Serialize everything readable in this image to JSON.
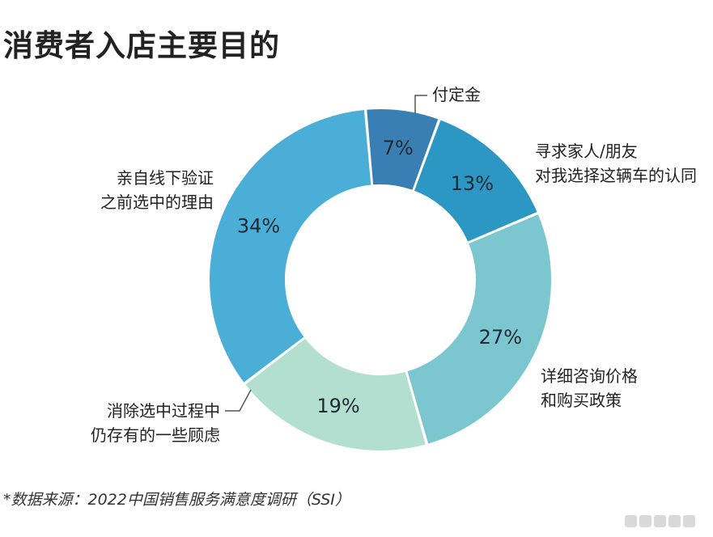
{
  "chart_data": {
    "type": "pie",
    "title": "消费者入店主要目的",
    "slices": [
      {
        "name": "付定金",
        "lines": [
          "付定金"
        ],
        "value": 7,
        "label": "7%",
        "color": "#3a7fb4"
      },
      {
        "name": "寻求家人/朋友对我选择这辆车的认同",
        "lines": [
          "寻求家人/朋友",
          "对我选择这辆车的认同"
        ],
        "value": 13,
        "label": "13%",
        "color": "#2b97c2"
      },
      {
        "name": "详细咨询价格和购买政策",
        "lines": [
          "详细咨询价格",
          "和购买政策"
        ],
        "value": 27,
        "label": "27%",
        "color": "#7cc7cf"
      },
      {
        "name": "消除选中过程中仍存有的一些顾虑",
        "lines": [
          "消除选中过程中",
          "仍存有的一些顾虑"
        ],
        "value": 19,
        "label": "19%",
        "color": "#b3dfd1"
      },
      {
        "name": "亲自线下验证之前选中的理由",
        "lines": [
          "亲自线下验证",
          "之前选中的理由"
        ],
        "value": 34,
        "label": "34%",
        "color": "#4baed7"
      }
    ]
  },
  "footer": {
    "source": "*数据来源：2022中国销售服务满意度调研（SSI）"
  }
}
